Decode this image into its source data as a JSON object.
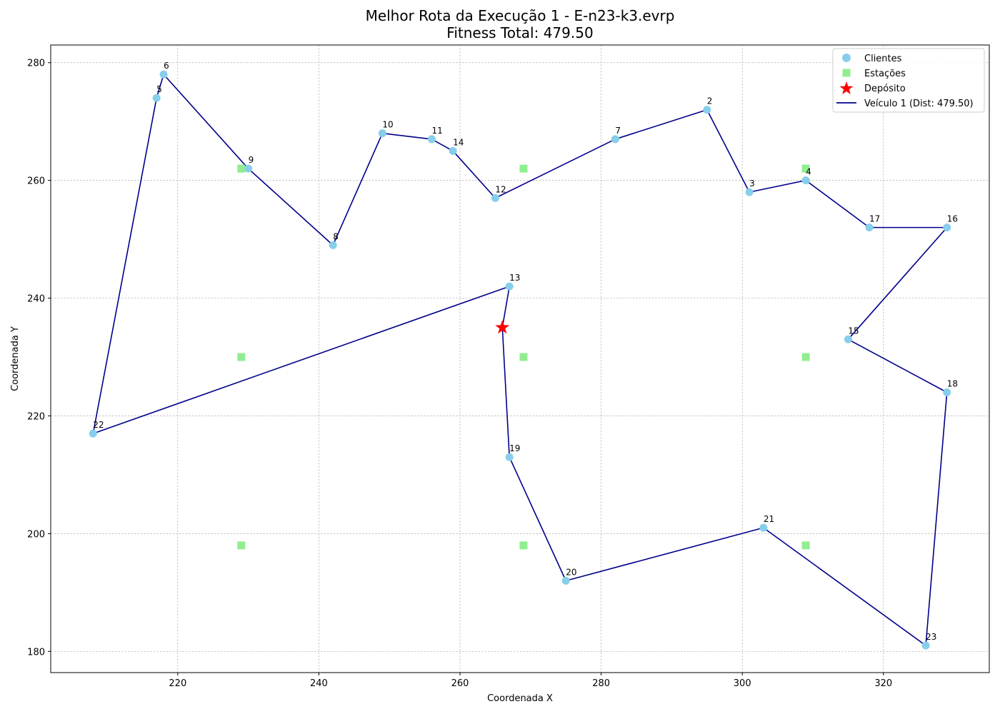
{
  "title_line1": "Melhor Rota da Execução 1 - E-n23-k3.evrp",
  "title_line2": "Fitness Total: 479.50",
  "chart_data": {
    "type": "scatter",
    "xlabel": "Coordenada X",
    "ylabel": "Coordenada Y",
    "xlim": [
      202,
      335
    ],
    "ylim": [
      176.4,
      283
    ],
    "x_ticks": [
      220,
      240,
      260,
      280,
      300,
      320
    ],
    "y_ticks": [
      180,
      200,
      220,
      240,
      260,
      280
    ],
    "grid": true,
    "legend_position": "top-right",
    "legend": {
      "clients": "Clientes",
      "stations": "Estações",
      "depot": "Depósito",
      "route": "Veículo 1 (Dist: 479.50)"
    },
    "colors": {
      "clients": "#87ceeb",
      "stations": "#90ee90",
      "depot": "#ff0000",
      "route": "#00008b",
      "grid": "#b0b0b0"
    },
    "clients": [
      {
        "label": "2",
        "x": 295,
        "y": 272
      },
      {
        "label": "3",
        "x": 301,
        "y": 258
      },
      {
        "label": "4",
        "x": 309,
        "y": 260
      },
      {
        "label": "5",
        "x": 217,
        "y": 274
      },
      {
        "label": "6",
        "x": 218,
        "y": 278
      },
      {
        "label": "7",
        "x": 282,
        "y": 267
      },
      {
        "label": "8",
        "x": 242,
        "y": 249
      },
      {
        "label": "9",
        "x": 230,
        "y": 262
      },
      {
        "label": "10",
        "x": 249,
        "y": 268
      },
      {
        "label": "11",
        "x": 256,
        "y": 267
      },
      {
        "label": "12",
        "x": 265,
        "y": 257
      },
      {
        "label": "13",
        "x": 267,
        "y": 242
      },
      {
        "label": "14",
        "x": 259,
        "y": 265
      },
      {
        "label": "15",
        "x": 315,
        "y": 233
      },
      {
        "label": "16",
        "x": 329,
        "y": 252
      },
      {
        "label": "17",
        "x": 318,
        "y": 252
      },
      {
        "label": "18",
        "x": 329,
        "y": 224
      },
      {
        "label": "19",
        "x": 267,
        "y": 213
      },
      {
        "label": "20",
        "x": 275,
        "y": 192
      },
      {
        "label": "21",
        "x": 303,
        "y": 201
      },
      {
        "label": "22",
        "x": 208,
        "y": 217
      },
      {
        "label": "23",
        "x": 326,
        "y": 181
      }
    ],
    "stations": [
      {
        "x": 229,
        "y": 262
      },
      {
        "x": 269,
        "y": 262
      },
      {
        "x": 309,
        "y": 262
      },
      {
        "x": 229,
        "y": 230
      },
      {
        "x": 269,
        "y": 230
      },
      {
        "x": 309,
        "y": 230
      },
      {
        "x": 229,
        "y": 198
      },
      {
        "x": 269,
        "y": 198
      },
      {
        "x": 309,
        "y": 198
      }
    ],
    "depot": {
      "x": 266,
      "y": 235
    },
    "route": {
      "name": "Veículo 1 (Dist: 479.50)",
      "path": [
        [
          266,
          235
        ],
        [
          267,
          242
        ],
        [
          208,
          217
        ],
        [
          217,
          274
        ],
        [
          218,
          278
        ],
        [
          230,
          262
        ],
        [
          242,
          249
        ],
        [
          249,
          268
        ],
        [
          256,
          267
        ],
        [
          259,
          265
        ],
        [
          265,
          257
        ],
        [
          282,
          267
        ],
        [
          295,
          272
        ],
        [
          301,
          258
        ],
        [
          309,
          260
        ],
        [
          318,
          252
        ],
        [
          329,
          252
        ],
        [
          315,
          233
        ],
        [
          329,
          224
        ],
        [
          326,
          181
        ],
        [
          303,
          201
        ],
        [
          275,
          192
        ],
        [
          267,
          213
        ],
        [
          266,
          235
        ]
      ]
    }
  }
}
